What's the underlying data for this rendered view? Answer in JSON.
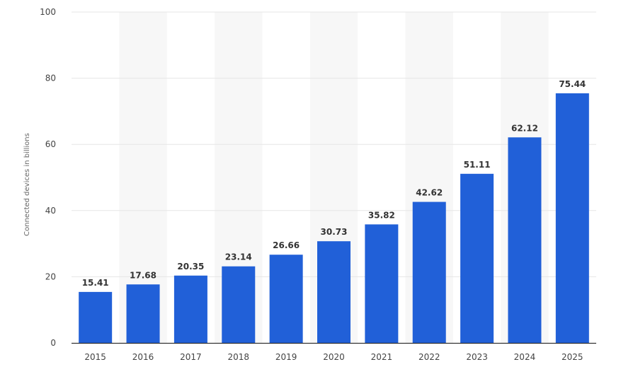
{
  "chart_data": {
    "type": "bar",
    "title": "",
    "xlabel": "",
    "ylabel": "Connected devices in billions",
    "categories": [
      "2015",
      "2016",
      "2017",
      "2018",
      "2019",
      "2020",
      "2021",
      "2022",
      "2023",
      "2024",
      "2025"
    ],
    "values": [
      15.41,
      17.68,
      20.35,
      23.14,
      26.66,
      30.73,
      35.82,
      42.62,
      51.11,
      62.12,
      75.44
    ],
    "value_labels": [
      "15.41",
      "17.68",
      "20.35",
      "23.14",
      "26.66",
      "30.73",
      "35.82",
      "42.62",
      "51.11",
      "62.12",
      "75.44"
    ],
    "ylim": [
      0,
      100
    ],
    "yticks": [
      "0",
      "20",
      "40",
      "60",
      "80",
      "100"
    ],
    "grid": true,
    "alternating_column_shading": true,
    "legend": "none",
    "colors": {
      "bar": "#2160d8",
      "gridline": "#e6e6e6",
      "band": "#f7f7f7",
      "axis": "#333333"
    }
  }
}
